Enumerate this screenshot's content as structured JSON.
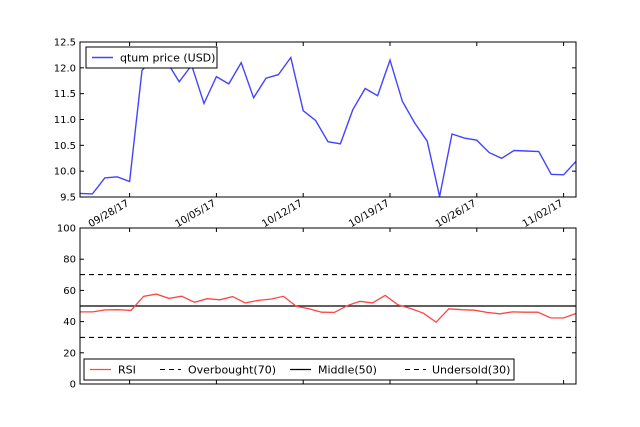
{
  "chart_data": [
    {
      "type": "line",
      "title": "",
      "xlabel": "",
      "ylabel": "",
      "x_tick_labels": [
        "09/28/17",
        "10/05/17",
        "10/12/17",
        "10/19/17",
        "10/26/17",
        "11/02/17"
      ],
      "ylim": [
        9.5,
        12.5
      ],
      "yticks": [
        9.5,
        10.0,
        10.5,
        11.0,
        11.5,
        12.0,
        12.5
      ],
      "ytick_labels": [
        "9.5",
        "10.0",
        "10.5",
        "11.0",
        "11.5",
        "12.0",
        "12.5"
      ],
      "legend_position": "top-left",
      "series": [
        {
          "name": "qtum price (USD)",
          "color": "#4444ff",
          "values": [
            9.57,
            9.56,
            9.87,
            9.89,
            9.8,
            11.95,
            12.2,
            12.12,
            11.73,
            12.05,
            11.31,
            11.83,
            11.69,
            12.1,
            11.42,
            11.8,
            11.87,
            12.2,
            11.17,
            10.98,
            10.57,
            10.53,
            11.19,
            11.6,
            11.46,
            12.15,
            11.35,
            10.93,
            10.58,
            9.51,
            10.72,
            10.64,
            10.6,
            10.36,
            10.25,
            10.4,
            10.39,
            10.38,
            9.94,
            9.93,
            10.19
          ]
        }
      ]
    },
    {
      "type": "line",
      "title": "",
      "xlabel": "",
      "ylabel": "",
      "ylim": [
        0,
        100
      ],
      "yticks": [
        0,
        20,
        40,
        60,
        80,
        100
      ],
      "ytick_labels": [
        "0",
        "20",
        "40",
        "60",
        "80",
        "100"
      ],
      "legend_position": "bottom",
      "series": [
        {
          "name": "RSI",
          "color": "#ff4444",
          "values": [
            46.2,
            46.2,
            47.5,
            47.6,
            47.2,
            56.2,
            57.6,
            54.9,
            56.3,
            52.4,
            54.7,
            54.0,
            56.0,
            52.0,
            53.6,
            54.4,
            56.2,
            49.8,
            48.3,
            46.0,
            45.9,
            50.2,
            53.0,
            52.0,
            56.8,
            50.8,
            48.4,
            45.4,
            39.6,
            48.2,
            47.6,
            47.3,
            45.9,
            45.0,
            46.2,
            46.0,
            46.0,
            42.4,
            42.3,
            45.2
          ]
        },
        {
          "name": "Overbought(70)",
          "color": "#000000",
          "style": "dashed",
          "values": [
            70,
            70
          ]
        },
        {
          "name": "Middle(50)",
          "color": "#000000",
          "style": "solid",
          "values": [
            50,
            50
          ]
        },
        {
          "name": "Undersold(30)",
          "color": "#000000",
          "style": "dashed",
          "values": [
            30,
            30
          ]
        }
      ]
    }
  ]
}
